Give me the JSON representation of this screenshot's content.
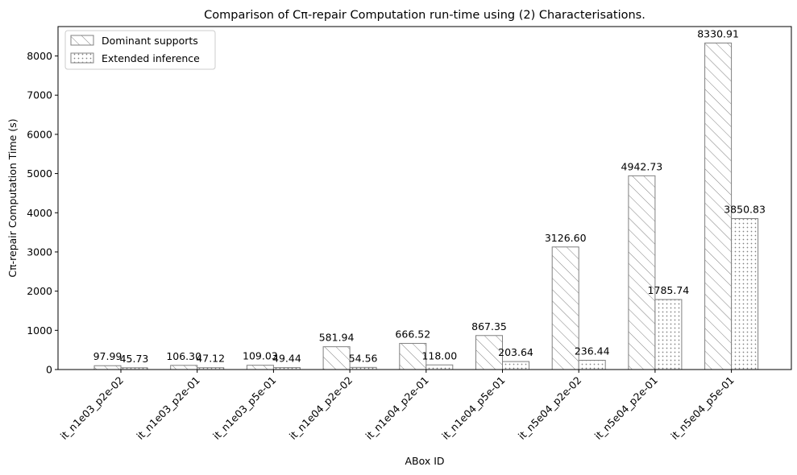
{
  "chart_data": {
    "type": "bar",
    "title": "Comparison of Cπ-repair Computation run-time using (2) Characterisations.",
    "xlabel": "ABox ID",
    "ylabel": "Cπ-repair Computation Time (s)",
    "ylim": [
      0,
      8750
    ],
    "yticks": [
      0,
      1000,
      2000,
      3000,
      4000,
      5000,
      6000,
      7000,
      8000
    ],
    "grid": false,
    "legend_position": "top-left",
    "categories": [
      "it_n1e03_p2e-02",
      "it_n1e03_p2e-01",
      "it_n1e03_p5e-01",
      "it_n1e04_p2e-02",
      "it_n1e04_p2e-01",
      "it_n1e04_p5e-01",
      "it_n5e04_p2e-02",
      "it_n5e04_p2e-01",
      "it_n5e04_p5e-01"
    ],
    "series": [
      {
        "name": "Dominant supports",
        "pattern": "hatch-diagonal",
        "values": [
          97.99,
          106.3,
          109.03,
          581.94,
          666.52,
          867.35,
          3126.6,
          4942.73,
          8330.91
        ],
        "labels": [
          "97.99",
          "106.30",
          "109.03",
          "581.94",
          "666.52",
          "867.35",
          "3126.60",
          "4942.73",
          "8330.91"
        ]
      },
      {
        "name": "Extended inference",
        "pattern": "dotted",
        "values": [
          45.73,
          47.12,
          49.44,
          54.56,
          118.0,
          203.64,
          236.44,
          1785.74,
          3850.83
        ],
        "labels": [
          "45.73",
          "47.12",
          "49.44",
          "54.56",
          "118.00",
          "203.64",
          "236.44",
          "1785.74",
          "3850.83"
        ]
      }
    ],
    "colors": {
      "bar_edge": "#808080",
      "bar_fill": "#ffffff",
      "axis": "#000000"
    }
  }
}
